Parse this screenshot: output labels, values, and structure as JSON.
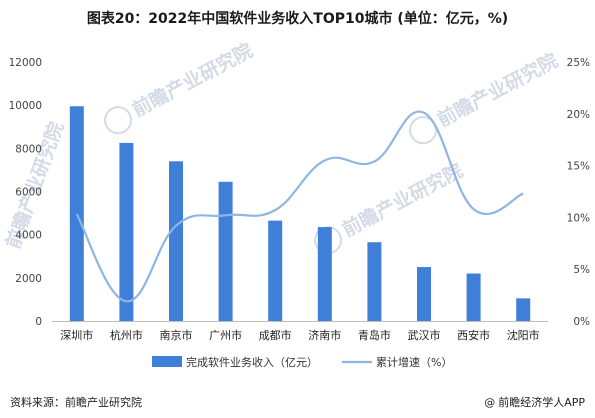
{
  "title": "图表20：2022年中国软件业务收入TOP10城市 (单位：亿元，%)",
  "chart_data": {
    "type": "bar",
    "categories": [
      "深圳市",
      "杭州市",
      "南京市",
      "广州市",
      "成都市",
      "济南市",
      "青岛市",
      "武汉市",
      "西安市",
      "沈阳市"
    ],
    "series": [
      {
        "name": "完成软件业务收入（亿元）",
        "type": "bar",
        "axis": "left",
        "values": [
          9950,
          8250,
          7400,
          6450,
          4650,
          4350,
          3650,
          2500,
          2200,
          1050
        ]
      },
      {
        "name": "累计增速（%）",
        "type": "line",
        "axis": "right",
        "values": [
          10.3,
          1.9,
          9.2,
          10.2,
          10.7,
          15.5,
          15.4,
          20.1,
          10.8,
          12.3
        ]
      }
    ],
    "yticks_left": [
      "0",
      "2000",
      "4000",
      "6000",
      "8000",
      "10000",
      "12000"
    ],
    "yticks_right": [
      "0%",
      "5%",
      "10%",
      "15%",
      "20%",
      "25%"
    ],
    "ylim_left": [
      0,
      12000
    ],
    "ylim_right": [
      0,
      25
    ],
    "grid": false,
    "legend_position": "bottom",
    "bar_color": "#3f7fd8",
    "line_color": "#8fb6e3"
  },
  "watermark": {
    "brand_text": "前瞻产业研究院"
  },
  "footer": {
    "source": "资料来源：前瞻产业研究院",
    "brand_at": "@",
    "brand": "前瞻经济学人APP"
  }
}
